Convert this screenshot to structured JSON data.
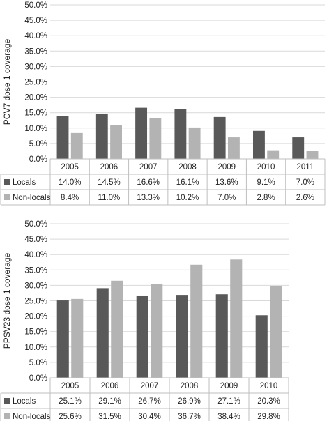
{
  "colors": {
    "locals": "#595959",
    "non_locals": "#b3b3b3",
    "grid": "#d9d9d9",
    "border": "#bfbfbf"
  },
  "chart_data": [
    {
      "type": "bar",
      "ylabel": "PCV7 dose 1 coverage",
      "ylim": [
        0,
        50
      ],
      "yticks": [
        "0.0%",
        "5.0%",
        "10.0%",
        "15.0%",
        "20.0%",
        "25.0%",
        "30.0%",
        "35.0%",
        "40.0%",
        "45.0%",
        "50.0%"
      ],
      "grid": true,
      "legend": "data-table",
      "categories": [
        "2005",
        "2006",
        "2007",
        "2008",
        "2009",
        "2010",
        "2011"
      ],
      "series": [
        {
          "name": "Locals",
          "values": [
            14.0,
            14.5,
            16.6,
            16.1,
            13.6,
            9.1,
            7.0
          ],
          "labels": [
            "14.0%",
            "14.5%",
            "16.6%",
            "16.1%",
            "13.6%",
            "9.1%",
            "7.0%"
          ]
        },
        {
          "name": "Non-locals",
          "values": [
            8.4,
            11.0,
            13.3,
            10.2,
            7.0,
            2.8,
            2.6
          ],
          "labels": [
            "8.4%",
            "11.0%",
            "13.3%",
            "10.2%",
            "7.0%",
            "2.8%",
            "2.6%"
          ]
        }
      ]
    },
    {
      "type": "bar",
      "ylabel": "PPSV23 dose 1 coverage",
      "ylim": [
        0,
        50
      ],
      "yticks": [
        "0.0%",
        "5.0%",
        "10.0%",
        "15.0%",
        "20.0%",
        "25.0%",
        "30.0%",
        "35.0%",
        "40.0%",
        "45.0%",
        "50.0%"
      ],
      "grid": true,
      "legend": "data-table",
      "categories": [
        "2005",
        "2006",
        "2007",
        "2008",
        "2009",
        "2010"
      ],
      "series": [
        {
          "name": "Locals",
          "values": [
            25.1,
            29.1,
            26.7,
            26.9,
            27.1,
            20.3
          ],
          "labels": [
            "25.1%",
            "29.1%",
            "26.7%",
            "26.9%",
            "27.1%",
            "20.3%"
          ]
        },
        {
          "name": "Non-locals",
          "values": [
            25.6,
            31.5,
            30.4,
            36.7,
            38.4,
            29.8
          ],
          "labels": [
            "25.6%",
            "31.5%",
            "30.4%",
            "36.7%",
            "38.4%",
            "29.8%"
          ]
        }
      ]
    }
  ]
}
